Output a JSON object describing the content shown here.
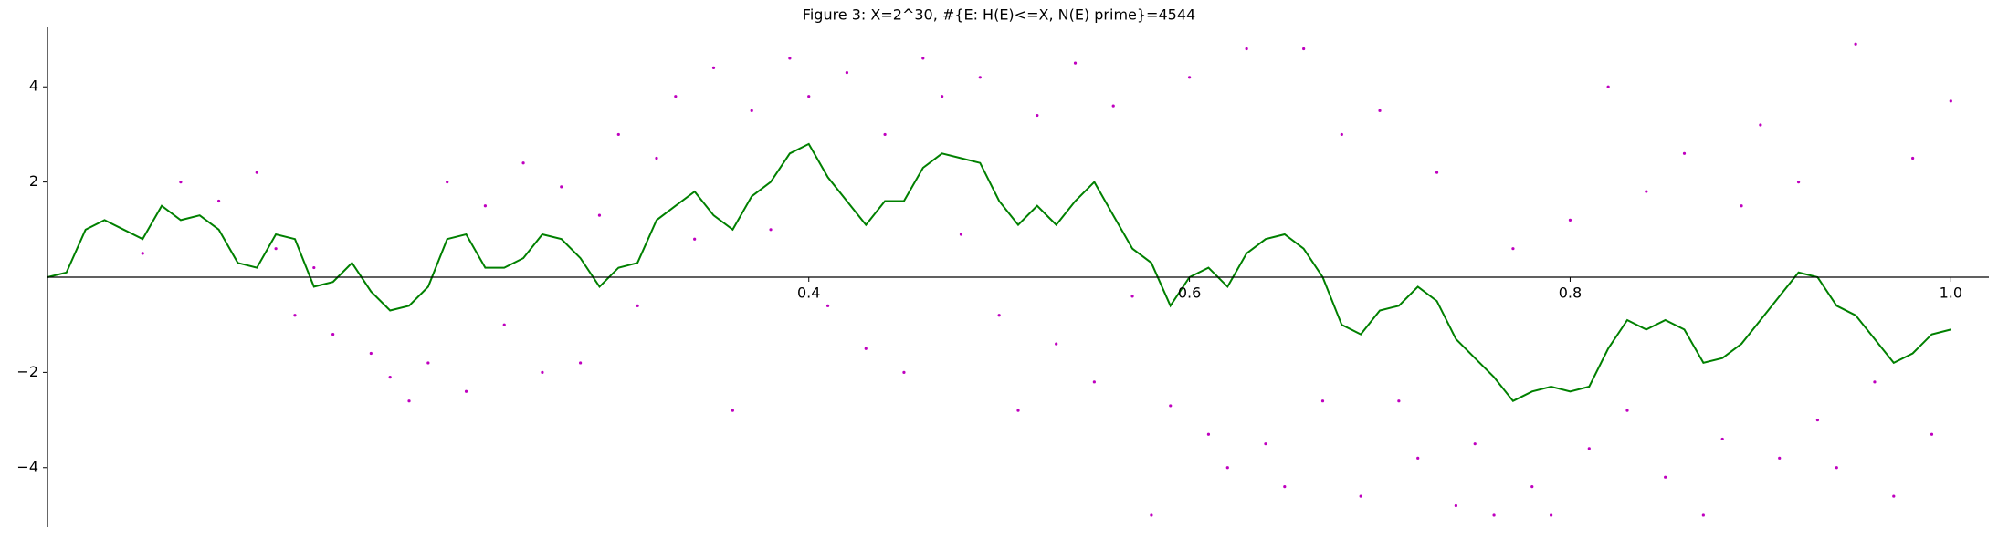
{
  "chart_data": {
    "type": "line",
    "title": "Figure 3: X=2^30, #{E: H(E)<=X, N(E) prime}=4544",
    "xlim": [
      0,
      1.02
    ],
    "ylim": [
      -5.25,
      5.25
    ],
    "xticks": [
      0.4,
      0.6,
      0.8,
      {
        "value": 1,
        "label": "1.0"
      }
    ],
    "yticks": [
      {
        "value": -4,
        "label": "−4"
      },
      {
        "value": -2,
        "label": "−2"
      },
      2,
      4
    ],
    "series": [
      {
        "mark": "line",
        "color": "#008000",
        "x": [
          0,
          0.01,
          0.02,
          0.03,
          0.04,
          0.05,
          0.06,
          0.07,
          0.08,
          0.09,
          0.1,
          0.11,
          0.12,
          0.13,
          0.14,
          0.15,
          0.16,
          0.17,
          0.18,
          0.19,
          0.2,
          0.21,
          0.22,
          0.23,
          0.24,
          0.25,
          0.26,
          0.27,
          0.28,
          0.29,
          0.3,
          0.31,
          0.32,
          0.33,
          0.34,
          0.35,
          0.36,
          0.37,
          0.38,
          0.39,
          0.4,
          0.41,
          0.42,
          0.43,
          0.44,
          0.45,
          0.46,
          0.47,
          0.48,
          0.49,
          0.5,
          0.51,
          0.52,
          0.53,
          0.54,
          0.55,
          0.56,
          0.57,
          0.58,
          0.59,
          0.6,
          0.61,
          0.62,
          0.63,
          0.64,
          0.65,
          0.66,
          0.67,
          0.68,
          0.69,
          0.7,
          0.71,
          0.72,
          0.73,
          0.74,
          0.75,
          0.76,
          0.77,
          0.78,
          0.79,
          0.8,
          0.81,
          0.82,
          0.83,
          0.84,
          0.85,
          0.86,
          0.87,
          0.88,
          0.89,
          0.9,
          0.91,
          0.92,
          0.93,
          0.94,
          0.95,
          0.96,
          0.97,
          0.98,
          0.99,
          1
        ],
        "values": [
          0,
          0.1,
          1.0,
          1.2,
          1.0,
          0.8,
          1.5,
          1.2,
          1.3,
          1.0,
          0.3,
          0.2,
          0.9,
          0.8,
          -0.2,
          -0.1,
          0.3,
          -0.3,
          -0.7,
          -0.6,
          -0.2,
          0.8,
          0.9,
          0.2,
          0.2,
          0.4,
          0.9,
          0.8,
          0.4,
          -0.2,
          0.2,
          0.3,
          1.2,
          1.5,
          1.8,
          1.3,
          1.0,
          1.7,
          2.0,
          2.6,
          2.8,
          2.1,
          1.6,
          1.1,
          1.6,
          1.6,
          2.3,
          2.6,
          2.5,
          2.4,
          1.6,
          1.1,
          1.5,
          1.1,
          1.6,
          2.0,
          1.3,
          0.6,
          0.3,
          -0.6,
          0.0,
          0.2,
          -0.2,
          0.5,
          0.8,
          0.9,
          0.6,
          0.0,
          -1.0,
          -1.2,
          -0.7,
          -0.6,
          -0.2,
          -0.5,
          -1.3,
          -1.7,
          -2.1,
          -2.6,
          -2.4,
          -2.3,
          -2.4,
          -2.3,
          -1.5,
          -0.9,
          -1.1,
          -0.9,
          -1.1,
          -1.8,
          -1.7,
          -1.4,
          -0.9,
          -0.4,
          0.1,
          0.0,
          -0.6,
          -0.8,
          -1.3,
          -1.8,
          -1.6,
          -1.2,
          -1.1
        ]
      },
      {
        "mark": "point",
        "color": "#bf00bf",
        "x": [
          0.05,
          0.07,
          0.09,
          0.11,
          0.12,
          0.13,
          0.14,
          0.15,
          0.17,
          0.18,
          0.19,
          0.2,
          0.21,
          0.22,
          0.23,
          0.24,
          0.25,
          0.26,
          0.27,
          0.28,
          0.29,
          0.3,
          0.31,
          0.32,
          0.33,
          0.34,
          0.35,
          0.36,
          0.37,
          0.38,
          0.39,
          0.4,
          0.41,
          0.42,
          0.43,
          0.44,
          0.45,
          0.46,
          0.47,
          0.48,
          0.49,
          0.5,
          0.51,
          0.52,
          0.53,
          0.54,
          0.55,
          0.56,
          0.57,
          0.58,
          0.59,
          0.6,
          0.61,
          0.62,
          0.63,
          0.64,
          0.65,
          0.66,
          0.67,
          0.68,
          0.69,
          0.7,
          0.71,
          0.72,
          0.73,
          0.74,
          0.75,
          0.76,
          0.77,
          0.78,
          0.79,
          0.8,
          0.81,
          0.82,
          0.83,
          0.84,
          0.85,
          0.86,
          0.87,
          0.88,
          0.89,
          0.9,
          0.91,
          0.92,
          0.93,
          0.94,
          0.95,
          0.96,
          0.97,
          0.98,
          0.99,
          1
        ],
        "values": [
          0.5,
          2.0,
          1.6,
          2.2,
          0.6,
          -0.8,
          0.2,
          -1.2,
          -1.6,
          -2.1,
          -2.6,
          -1.8,
          2.0,
          -2.4,
          1.5,
          -1.0,
          2.4,
          -2.0,
          1.9,
          -1.8,
          1.3,
          3.0,
          -0.6,
          2.5,
          3.8,
          0.8,
          4.4,
          -2.8,
          3.5,
          1.0,
          4.6,
          3.8,
          -0.6,
          4.3,
          -1.5,
          3.0,
          -2.0,
          4.6,
          3.8,
          0.9,
          4.2,
          -0.8,
          -2.8,
          3.4,
          -1.4,
          4.5,
          -2.2,
          3.6,
          -0.4,
          -5.0,
          -2.7,
          4.2,
          -3.3,
          -4.0,
          4.8,
          -3.5,
          -4.4,
          4.8,
          -2.6,
          3.0,
          -4.6,
          3.5,
          -2.6,
          -3.8,
          2.2,
          -4.8,
          -3.5,
          -5.0,
          0.6,
          -4.4,
          -5.0,
          1.2,
          -3.6,
          4.0,
          -2.8,
          1.8,
          -4.2,
          2.6,
          -5.0,
          -3.4,
          1.5,
          3.2,
          -3.8,
          2.0,
          -3.0,
          -4.0,
          4.9,
          -2.2,
          -4.6,
          2.5,
          -3.3,
          3.7
        ]
      }
    ]
  }
}
